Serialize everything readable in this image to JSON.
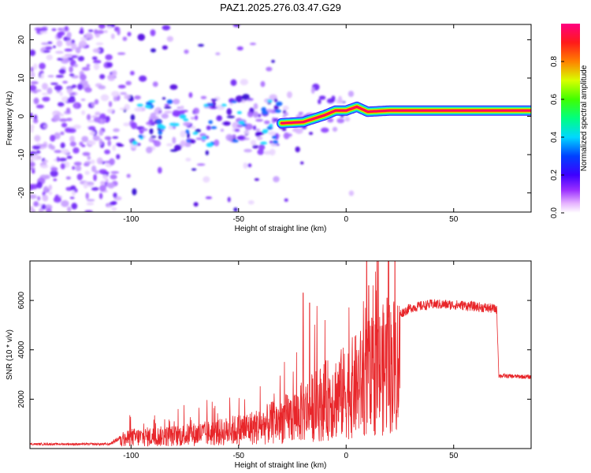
{
  "title": "PAZ1.2025.276.03.47.G29",
  "chart_data": [
    {
      "type": "heatmap",
      "xlabel": "Height of straight line (km)",
      "ylabel": "Frequency (Hz)",
      "xlim": [
        -147,
        86
      ],
      "ylim": [
        -25,
        24
      ],
      "xticks": [
        -100,
        -50,
        0,
        50
      ],
      "yticks": [
        -20,
        -10,
        0,
        10,
        20
      ],
      "colorbar": {
        "label": "Normalized spectral amplitude",
        "range": [
          0,
          1
        ],
        "ticks": [
          "0.0",
          "0.2",
          "0.4",
          "0.6",
          "0.8"
        ]
      },
      "ridge": [
        {
          "x": -30,
          "y": -1.8
        },
        {
          "x": -20,
          "y": -1.5
        },
        {
          "x": -10,
          "y": 0.3
        },
        {
          "x": -5,
          "y": 1.5
        },
        {
          "x": 0,
          "y": 1.5
        },
        {
          "x": 5,
          "y": 2.5
        },
        {
          "x": 10,
          "y": 1.2
        },
        {
          "x": 20,
          "y": 1.5
        },
        {
          "x": 86,
          "y": 1.5
        }
      ]
    },
    {
      "type": "line",
      "xlabel": "Height of straight line (km)",
      "ylabel": "SNR (10 * v/v)",
      "xlim": [
        -147,
        86
      ],
      "ylim": [
        0,
        7600
      ],
      "xticks": [
        -100,
        -50,
        0,
        50
      ],
      "yticks": [
        2000,
        4000,
        6000
      ],
      "color": "#e8262a",
      "envelope": [
        {
          "x": -147,
          "y": 180
        },
        {
          "x": -110,
          "y": 180
        },
        {
          "x": -100,
          "y": 700
        },
        {
          "x": -80,
          "y": 800
        },
        {
          "x": -60,
          "y": 1000
        },
        {
          "x": -40,
          "y": 1400
        },
        {
          "x": -25,
          "y": 2000
        },
        {
          "x": -10,
          "y": 3000
        },
        {
          "x": 0,
          "y": 3600
        },
        {
          "x": 10,
          "y": 4400
        },
        {
          "x": 20,
          "y": 5200
        },
        {
          "x": 30,
          "y": 5700
        },
        {
          "x": 40,
          "y": 5850
        },
        {
          "x": 55,
          "y": 5800
        },
        {
          "x": 70,
          "y": 5650
        },
        {
          "x": 71,
          "y": 2950
        },
        {
          "x": 86,
          "y": 2900
        }
      ],
      "peaks": [
        {
          "x": -20,
          "y": 6300
        },
        {
          "x": -17,
          "y": 5900
        },
        {
          "x": 9.5,
          "y": 7600
        },
        {
          "x": 10.5,
          "y": 6600
        },
        {
          "x": 11.5,
          "y": 1000
        },
        {
          "x": 19,
          "y": 6100
        }
      ]
    }
  ]
}
